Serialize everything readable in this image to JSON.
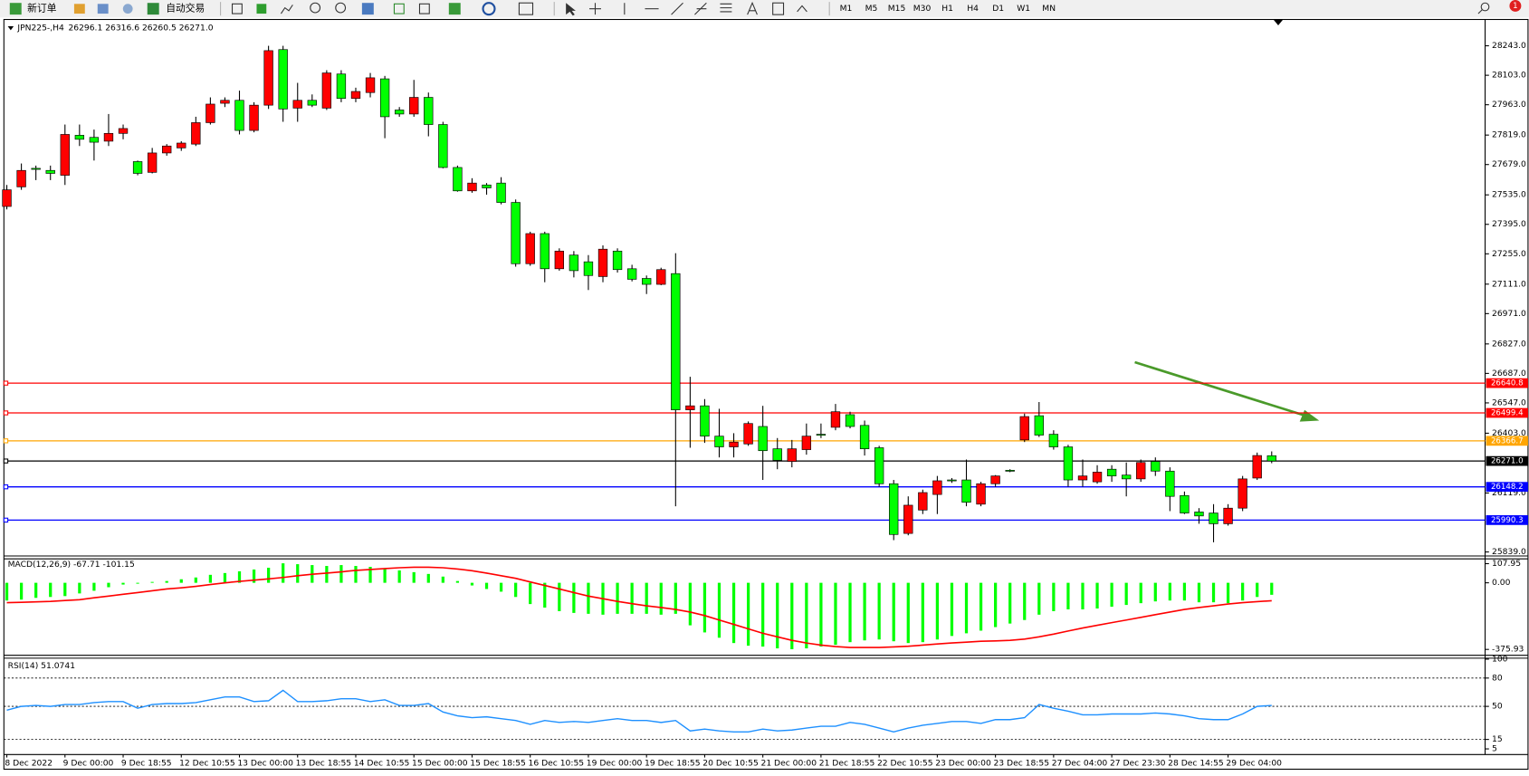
{
  "toolbar": {
    "new_order": "新订单",
    "auto_trading": "自动交易",
    "timeframes": [
      "M1",
      "M5",
      "M15",
      "M30",
      "H1",
      "H4",
      "D1",
      "W1",
      "MN"
    ],
    "badge": 1
  },
  "chart_data": [
    {
      "type": "candlestick",
      "title": "JPN225-,H4",
      "ohlc_text": "26296.1 26316.6 26260.5 26271.0",
      "up_color": "#ff0000",
      "down_color": "#00ff00",
      "categories": [
        "8 Dec 2022",
        null,
        null,
        null,
        "9 Dec 00:00",
        null,
        null,
        null,
        "9 Dec 18:55",
        null,
        null,
        null,
        "12 Dec 10:55",
        null,
        null,
        null,
        "13 Dec 00:00",
        null,
        null,
        null,
        "13 Dec 18:55",
        null,
        null,
        null,
        "14 Dec 10:55",
        null,
        null,
        null,
        "15 Dec 00:00",
        null,
        null,
        null,
        "15 Dec 18:55",
        null,
        null,
        null,
        "16 Dec 10:55",
        null,
        null,
        null,
        "19 Dec 00:00",
        null,
        null,
        null,
        "19 Dec 18:55",
        null,
        null,
        null,
        "20 Dec 10:55",
        null,
        null,
        null,
        "21 Dec 00:00",
        null,
        null,
        null,
        "21 Dec 18:55",
        null,
        null,
        null,
        "22 Dec 10:55",
        null,
        null,
        null,
        "23 Dec 00:00",
        null,
        null,
        null,
        "23 Dec 18:55",
        null,
        null,
        null,
        "27 Dec 04:00",
        null,
        null,
        null,
        "27 Dec 23:30",
        null,
        null,
        null,
        "28 Dec 14:55",
        null,
        null,
        null,
        "29 Dec 04:00",
        null,
        null,
        null
      ],
      "candles": [
        [
          27480,
          27582,
          27466,
          27559
        ],
        [
          27573,
          27684,
          27559,
          27651
        ],
        [
          27661,
          27674,
          27605,
          27656
        ],
        [
          27651,
          27674,
          27605,
          27637
        ],
        [
          27628,
          27869,
          27582,
          27822
        ],
        [
          27818,
          27869,
          27767,
          27799
        ],
        [
          27808,
          27845,
          27698,
          27785
        ],
        [
          27790,
          27919,
          27767,
          27827
        ],
        [
          27827,
          27869,
          27799,
          27850
        ],
        [
          27693,
          27698,
          27628,
          27637
        ],
        [
          27642,
          27758,
          27637,
          27734
        ],
        [
          27734,
          27776,
          27721,
          27767
        ],
        [
          27758,
          27790,
          27744,
          27781
        ],
        [
          27776,
          27906,
          27767,
          27878
        ],
        [
          27878,
          27998,
          27869,
          27966
        ],
        [
          27970,
          27998,
          27952,
          27984
        ],
        [
          27984,
          28030,
          27822,
          27841
        ],
        [
          27841,
          27975,
          27832,
          27961
        ],
        [
          27961,
          28243,
          27943,
          28220
        ],
        [
          28225,
          28243,
          27882,
          27943
        ],
        [
          27947,
          28067,
          27882,
          27984
        ],
        [
          27984,
          28012,
          27952,
          27961
        ],
        [
          27947,
          28127,
          27938,
          28114
        ],
        [
          28109,
          28127,
          27975,
          27993
        ],
        [
          27993,
          28044,
          27975,
          28026
        ],
        [
          28021,
          28114,
          27998,
          28091
        ],
        [
          28086,
          28100,
          27804,
          27906
        ],
        [
          27938,
          27952,
          27906,
          27919
        ],
        [
          27919,
          28081,
          27906,
          27998
        ],
        [
          27998,
          28021,
          27813,
          27869
        ],
        [
          27869,
          27882,
          27661,
          27665
        ],
        [
          27665,
          27674,
          27550,
          27554
        ],
        [
          27554,
          27614,
          27545,
          27591
        ],
        [
          27582,
          27591,
          27536,
          27568
        ],
        [
          27591,
          27619,
          27490,
          27499
        ],
        [
          27499,
          27513,
          27194,
          27208
        ],
        [
          27208,
          27360,
          27198,
          27351
        ],
        [
          27351,
          27360,
          27120,
          27184
        ],
        [
          27184,
          27281,
          27175,
          27268
        ],
        [
          27249,
          27268,
          27143,
          27175
        ],
        [
          27217,
          27249,
          27083,
          27152
        ],
        [
          27147,
          27295,
          27120,
          27277
        ],
        [
          27268,
          27281,
          27166,
          27180
        ],
        [
          27184,
          27203,
          27124,
          27134
        ],
        [
          27138,
          27152,
          27064,
          27110
        ],
        [
          27110,
          27189,
          27106,
          27180
        ],
        [
          27161,
          27258,
          26056,
          26514
        ],
        [
          26514,
          26671,
          26334,
          26533
        ],
        [
          26533,
          26565,
          26357,
          26389
        ],
        [
          26389,
          26519,
          26288,
          26338
        ],
        [
          26338,
          26403,
          26288,
          26361
        ],
        [
          26352,
          26459,
          26343,
          26449
        ],
        [
          26435,
          26533,
          26181,
          26320
        ],
        [
          26329,
          26380,
          26232,
          26274
        ],
        [
          26269,
          26371,
          26241,
          26329
        ],
        [
          26325,
          26449,
          26301,
          26389
        ],
        [
          26398,
          26449,
          26380,
          26394
        ],
        [
          26431,
          26542,
          26417,
          26505
        ],
        [
          26491,
          26505,
          26426,
          26435
        ],
        [
          26440,
          26463,
          26297,
          26329
        ],
        [
          26334,
          26343,
          26149,
          26163
        ],
        [
          26163,
          26181,
          25895,
          25922
        ],
        [
          25927,
          26103,
          25918,
          26061
        ],
        [
          26038,
          26135,
          26019,
          26121
        ],
        [
          26112,
          26200,
          26019,
          26177
        ],
        [
          26181,
          26190,
          26167,
          26177
        ],
        [
          26181,
          26278,
          26056,
          26075
        ],
        [
          26066,
          26172,
          26056,
          26163
        ],
        [
          26163,
          26204,
          26149,
          26200
        ],
        [
          26227,
          26232,
          26218,
          26223
        ],
        [
          26371,
          26496,
          26361,
          26482
        ],
        [
          26486,
          26551,
          26385,
          26394
        ],
        [
          26398,
          26417,
          26325,
          26338
        ],
        [
          26338,
          26348,
          26149,
          26181
        ],
        [
          26181,
          26278,
          26149,
          26200
        ],
        [
          26172,
          26251,
          26163,
          26218
        ],
        [
          26232,
          26251,
          26172,
          26200
        ],
        [
          26204,
          26264,
          26103,
          26186
        ],
        [
          26186,
          26278,
          26172,
          26264
        ],
        [
          26269,
          26288,
          26200,
          26223
        ],
        [
          26223,
          26241,
          26033,
          26103
        ],
        [
          26107,
          26126,
          26019,
          26024
        ],
        [
          26029,
          26047,
          25973,
          26010
        ],
        [
          26024,
          26066,
          25885,
          25973
        ],
        [
          25973,
          26066,
          25964,
          26047
        ],
        [
          26047,
          26200,
          26033,
          26186
        ],
        [
          26190,
          26311,
          26181,
          26297
        ],
        [
          26296.1,
          26316.6,
          26260.5,
          26271
        ]
      ],
      "ylim": [
        25820,
        28368
      ],
      "yticks": [
        {
          "value": 28243,
          "label": "28243.0"
        },
        {
          "value": 28103,
          "label": "28103.0"
        },
        {
          "value": 27963,
          "label": "27963.0"
        },
        {
          "value": 27819,
          "label": "27819.0"
        },
        {
          "value": 27679,
          "label": "27679.0"
        },
        {
          "value": 27535,
          "label": "27535.0"
        },
        {
          "value": 27395,
          "label": "27395.0"
        },
        {
          "value": 27255,
          "label": "27255.0"
        },
        {
          "value": 27111,
          "label": "27111.0"
        },
        {
          "value": 26971,
          "label": "26971.0"
        },
        {
          "value": 26827,
          "label": "26827.0"
        },
        {
          "value": 26687,
          "label": "26687.0"
        },
        {
          "value": 26547,
          "label": "26547.0"
        },
        {
          "value": 26403,
          "label": "26403.0"
        },
        {
          "value": 26119,
          "label": "26119.0"
        },
        {
          "value": 25839,
          "label": "25839.0"
        }
      ],
      "levels": [
        {
          "value": 26640.8,
          "color": "#ff0000"
        },
        {
          "value": 26499.4,
          "color": "#ff0000"
        },
        {
          "value": 26366.7,
          "color": "#ffa500"
        },
        {
          "value": 26271,
          "label": "26271.0",
          "color": "#000000"
        },
        {
          "value": 26148.2,
          "color": "#0000ff"
        },
        {
          "value": 25990.3,
          "color": "#0000ff"
        }
      ]
    },
    {
      "type": "macd",
      "title": "MACD(12,26,9) -67.71 -101.15",
      "histogram_color": "#00ff00",
      "signal_color": "#ff0000",
      "histogram": [
        -100,
        -95,
        -85,
        -80,
        -75,
        -60,
        -45,
        -25,
        -10,
        -5,
        5,
        10,
        20,
        30,
        45,
        55,
        65,
        75,
        85,
        110,
        105,
        100,
        95,
        100,
        95,
        90,
        80,
        70,
        60,
        50,
        35,
        10,
        -15,
        -35,
        -50,
        -80,
        -120,
        -140,
        -160,
        -170,
        -175,
        -180,
        -175,
        -175,
        -175,
        -180,
        -175,
        -240,
        -280,
        -310,
        -340,
        -355,
        -360,
        -370,
        -375,
        -370,
        -360,
        -350,
        -335,
        -325,
        -320,
        -330,
        -340,
        -335,
        -320,
        -300,
        -285,
        -270,
        -250,
        -230,
        -210,
        -180,
        -160,
        -150,
        -150,
        -145,
        -135,
        -125,
        -115,
        -105,
        -100,
        -100,
        -110,
        -110,
        -115,
        -100,
        -80,
        -67.71
      ],
      "signal": [
        -112,
        -110,
        -108,
        -105,
        -100,
        -95,
        -85,
        -75,
        -65,
        -55,
        -45,
        -35,
        -28,
        -20,
        -10,
        0,
        8,
        15,
        22,
        30,
        40,
        48,
        55,
        62,
        70,
        75,
        80,
        85,
        88,
        88,
        85,
        78,
        68,
        55,
        40,
        25,
        5,
        -15,
        -35,
        -55,
        -75,
        -90,
        -105,
        -118,
        -130,
        -140,
        -150,
        -165,
        -185,
        -210,
        -235,
        -260,
        -285,
        -305,
        -325,
        -340,
        -352,
        -360,
        -365,
        -365,
        -365,
        -362,
        -358,
        -352,
        -345,
        -340,
        -335,
        -330,
        -328,
        -325,
        -318,
        -305,
        -290,
        -272,
        -255,
        -240,
        -225,
        -210,
        -195,
        -180,
        -165,
        -150,
        -140,
        -130,
        -120,
        -112,
        -106,
        -101.15
      ],
      "ylim": [
        -398,
        135
      ],
      "yticks": [
        107.95,
        {
          "value": 0,
          "label": "0.00"
        },
        -375.93
      ]
    },
    {
      "type": "rsi",
      "title": "RSI(14) 51.0741",
      "color": "#1e90ff",
      "values": [
        46,
        50,
        51,
        50,
        52,
        52,
        54,
        55,
        55,
        48,
        52,
        53,
        53,
        54,
        57,
        60,
        60,
        55,
        56,
        67,
        55,
        55,
        56,
        58,
        58,
        55,
        57,
        51,
        51,
        53,
        44,
        40,
        38,
        39,
        37,
        35,
        31,
        35,
        33,
        34,
        33,
        35,
        37,
        35,
        35,
        33,
        35,
        24,
        26,
        24,
        23,
        23,
        26,
        24,
        25,
        27,
        29,
        29,
        33,
        31,
        27,
        23,
        27,
        30,
        32,
        34,
        34,
        32,
        36,
        36,
        38,
        52,
        48,
        45,
        41,
        41,
        42,
        42,
        42,
        43,
        42,
        40,
        37,
        36,
        36,
        42,
        50,
        51.0741
      ],
      "ylim": [
        0,
        100
      ],
      "yticks": [
        100,
        5
      ],
      "levels": [
        80,
        50,
        15
      ]
    }
  ]
}
